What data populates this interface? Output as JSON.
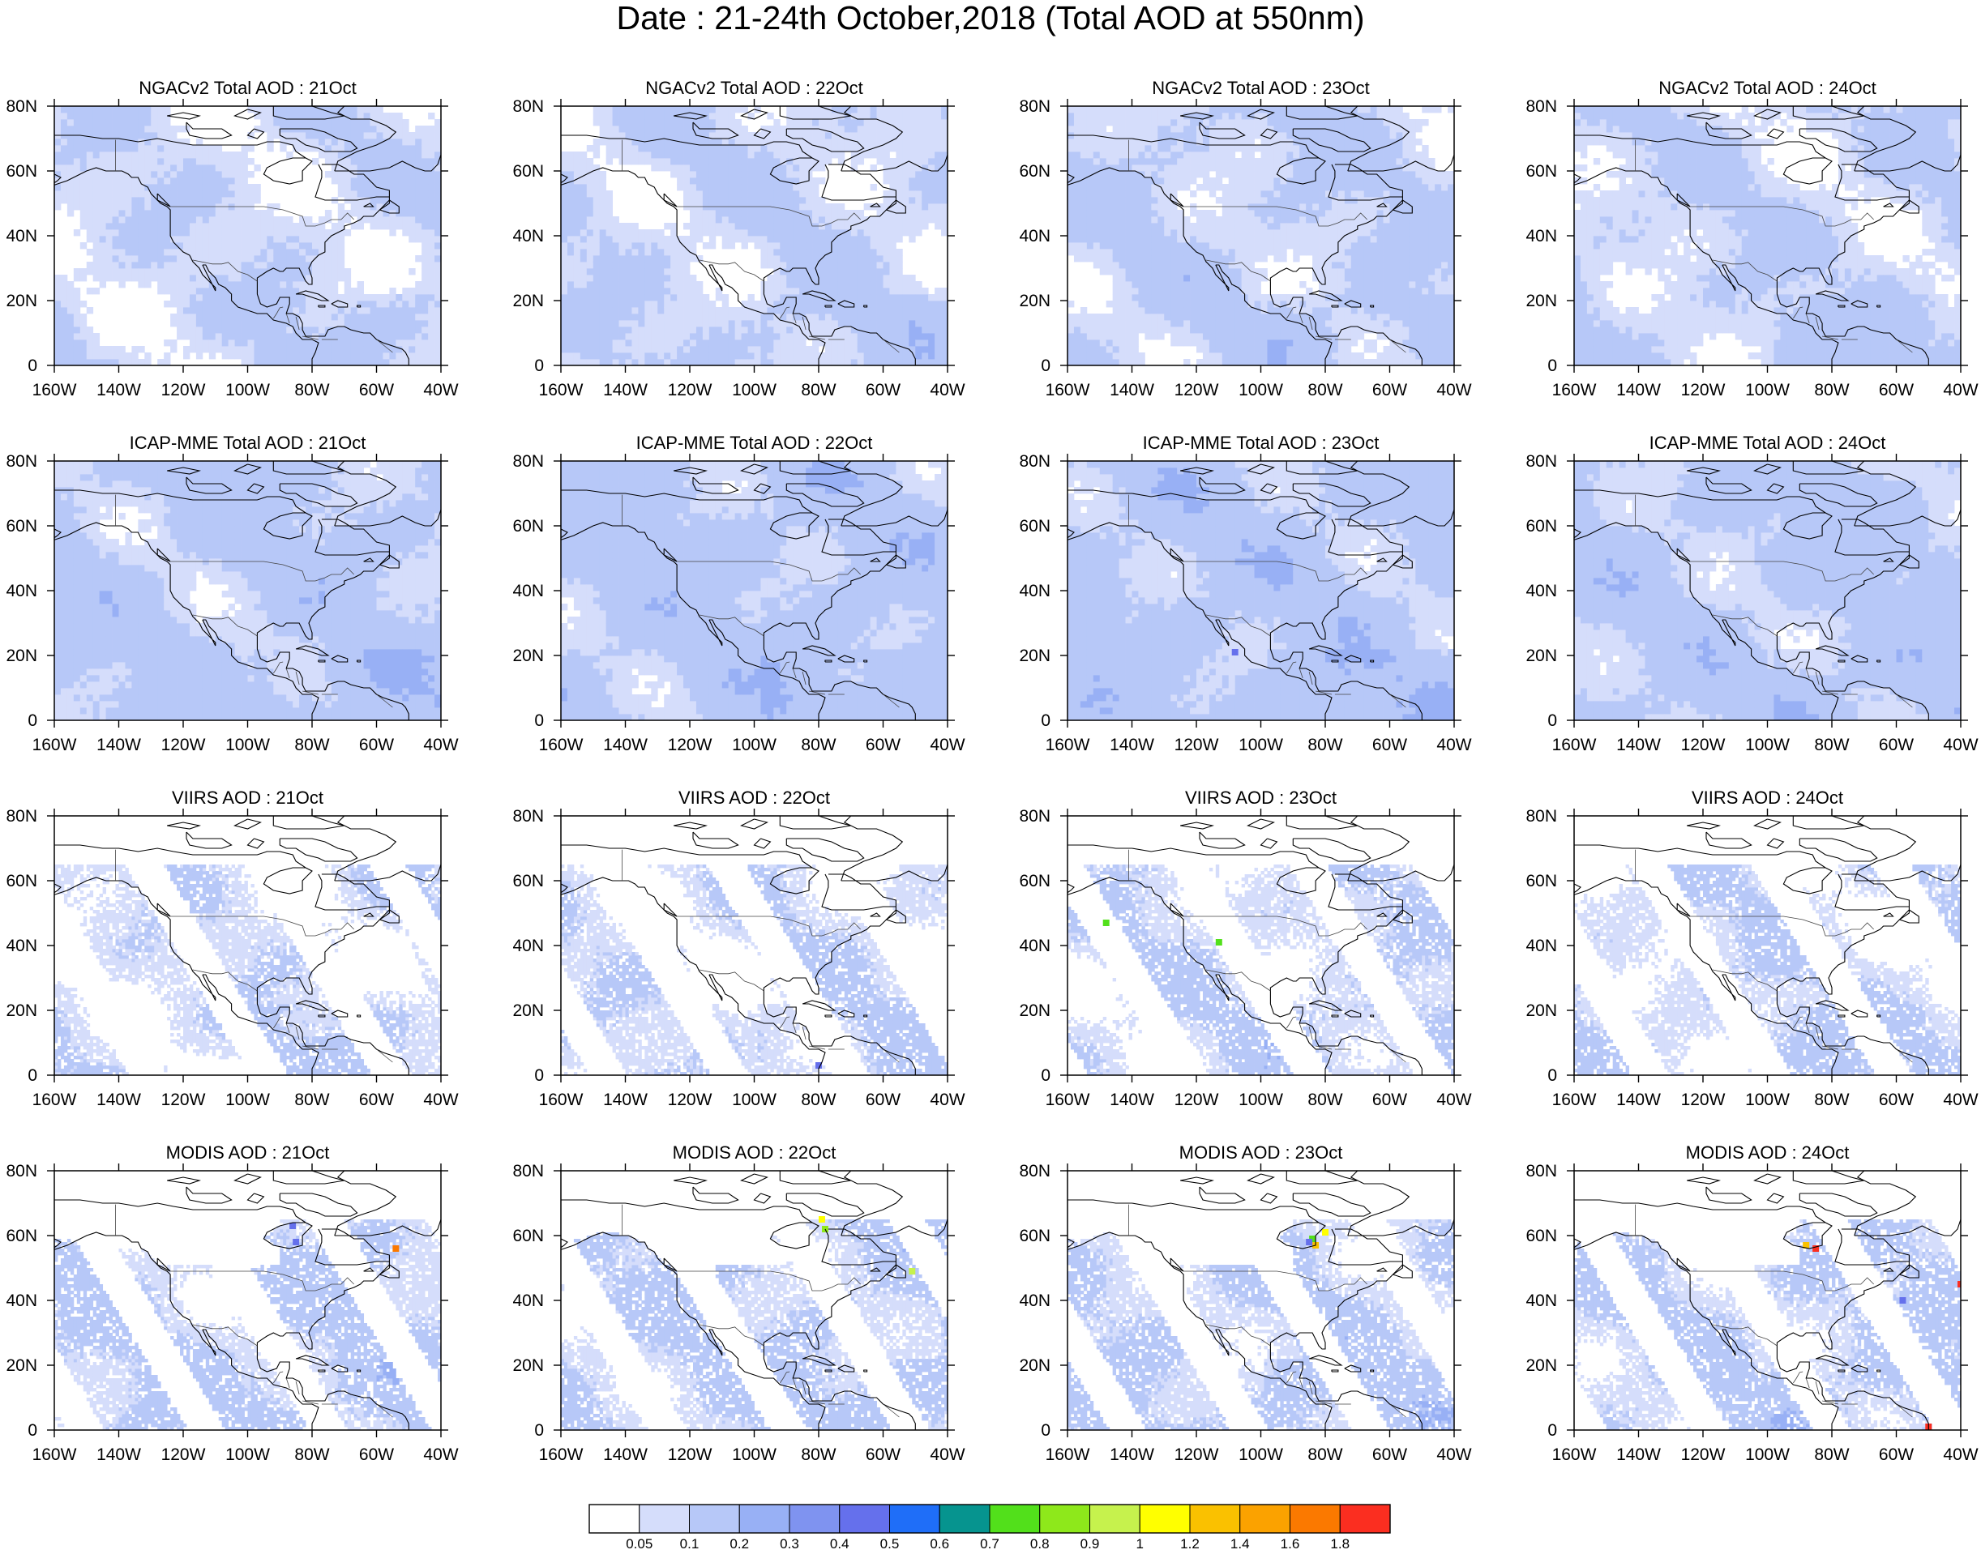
{
  "figure": {
    "title": "Date : 21-24th October,2018 (Total AOD at 550nm)"
  },
  "axes": {
    "x_ticks": [
      "160W",
      "140W",
      "120W",
      "100W",
      "80W",
      "60W",
      "40W"
    ],
    "x_values": [
      -160,
      -140,
      -120,
      -100,
      -80,
      -60,
      -40
    ],
    "y_ticks": [
      "0",
      "20N",
      "40N",
      "60N",
      "80N"
    ],
    "y_values": [
      0,
      20,
      40,
      60,
      80
    ],
    "xlim": [
      -160,
      -40
    ],
    "ylim": [
      0,
      80
    ]
  },
  "chart_data": [
    {
      "type": "heatmap",
      "title": "NGACv2 Total AOD : 21Oct",
      "row": 0,
      "col": 0,
      "base_aod": 0.08,
      "high_spots": []
    },
    {
      "type": "heatmap",
      "title": "NGACv2 Total AOD : 22Oct",
      "row": 0,
      "col": 1,
      "base_aod": 0.09,
      "high_spots": []
    },
    {
      "type": "heatmap",
      "title": "NGACv2 Total AOD : 23Oct",
      "row": 0,
      "col": 2,
      "base_aod": 0.1,
      "high_spots": []
    },
    {
      "type": "heatmap",
      "title": "NGACv2 Total AOD : 24Oct",
      "row": 0,
      "col": 3,
      "base_aod": 0.09,
      "high_spots": []
    },
    {
      "type": "heatmap",
      "title": "ICAP-MME Total AOD : 21Oct",
      "row": 1,
      "col": 0,
      "base_aod": 0.12,
      "high_spots": []
    },
    {
      "type": "heatmap",
      "title": "ICAP-MME Total AOD : 22Oct",
      "row": 1,
      "col": 1,
      "base_aod": 0.13,
      "high_spots": []
    },
    {
      "type": "heatmap",
      "title": "ICAP-MME Total AOD : 23Oct",
      "row": 1,
      "col": 2,
      "base_aod": 0.13,
      "high_spots": [
        {
          "lon": -108,
          "lat": 21,
          "aod": 0.45
        }
      ]
    },
    {
      "type": "heatmap",
      "title": "ICAP-MME Total AOD : 24Oct",
      "row": 1,
      "col": 3,
      "base_aod": 0.12,
      "high_spots": []
    },
    {
      "type": "heatmap",
      "title": "VIIRS AOD : 21Oct",
      "row": 2,
      "col": 0,
      "base_aod": 0.07,
      "high_spots": []
    },
    {
      "type": "heatmap",
      "title": "VIIRS AOD : 22Oct",
      "row": 2,
      "col": 1,
      "base_aod": 0.07,
      "high_spots": [
        {
          "lon": -80,
          "lat": 3,
          "aod": 0.45
        }
      ]
    },
    {
      "type": "heatmap",
      "title": "VIIRS AOD : 23Oct",
      "row": 2,
      "col": 2,
      "base_aod": 0.08,
      "high_spots": [
        {
          "lon": -148,
          "lat": 47,
          "aod": 0.75
        },
        {
          "lon": -113,
          "lat": 41,
          "aod": 0.75
        }
      ]
    },
    {
      "type": "heatmap",
      "title": "VIIRS AOD : 24Oct",
      "row": 2,
      "col": 3,
      "base_aod": 0.08,
      "high_spots": []
    },
    {
      "type": "heatmap",
      "title": "MODIS AOD : 21Oct",
      "row": 3,
      "col": 0,
      "base_aod": 0.1,
      "high_spots": [
        {
          "lon": -54,
          "lat": 56,
          "aod": 1.7
        },
        {
          "lon": -86,
          "lat": 63,
          "aod": 0.45
        },
        {
          "lon": -85,
          "lat": 58,
          "aod": 0.45
        }
      ]
    },
    {
      "type": "heatmap",
      "title": "MODIS AOD : 22Oct",
      "row": 3,
      "col": 1,
      "base_aod": 0.1,
      "high_spots": [
        {
          "lon": -79,
          "lat": 65,
          "aod": 1.1
        },
        {
          "lon": -78,
          "lat": 62,
          "aod": 0.8
        },
        {
          "lon": -51,
          "lat": 49,
          "aod": 0.95
        }
      ]
    },
    {
      "type": "heatmap",
      "title": "MODIS AOD : 23Oct",
      "row": 3,
      "col": 2,
      "base_aod": 0.1,
      "high_spots": [
        {
          "lon": -84,
          "lat": 59,
          "aod": 0.75
        },
        {
          "lon": -80,
          "lat": 61,
          "aod": 1.1
        },
        {
          "lon": -83,
          "lat": 57,
          "aod": 1.3
        },
        {
          "lon": -85,
          "lat": 58,
          "aod": 0.45
        }
      ]
    },
    {
      "type": "heatmap",
      "title": "MODIS AOD : 24Oct",
      "row": 3,
      "col": 3,
      "base_aod": 0.1,
      "high_spots": [
        {
          "lon": -88,
          "lat": 57,
          "aod": 1.3
        },
        {
          "lon": -85,
          "lat": 56,
          "aod": 1.9
        },
        {
          "lon": -50,
          "lat": 1,
          "aod": 1.9
        },
        {
          "lon": -40,
          "lat": 45,
          "aod": 1.9
        },
        {
          "lon": -58,
          "lat": 40,
          "aod": 0.45
        }
      ]
    }
  ],
  "colorbar": {
    "labels": [
      "0.05",
      "0.1",
      "0.2",
      "0.3",
      "0.4",
      "0.5",
      "0.6",
      "0.7",
      "0.8",
      "0.9",
      "1",
      "1.2",
      "1.4",
      "1.6",
      "1.8"
    ],
    "thresholds": [
      0.05,
      0.1,
      0.2,
      0.3,
      0.4,
      0.5,
      0.6,
      0.7,
      0.8,
      0.9,
      1,
      1.2,
      1.4,
      1.6,
      1.8
    ],
    "colors": [
      "#ffffff",
      "#d5ddfb",
      "#b7c8f8",
      "#98b0f5",
      "#7f93f0",
      "#6570ec",
      "#1f6ef8",
      "#06948f",
      "#52e01b",
      "#8ee81b",
      "#c6f24d",
      "#ffff00",
      "#fac100",
      "#fba200",
      "#fb7900",
      "#fb2e20"
    ]
  }
}
